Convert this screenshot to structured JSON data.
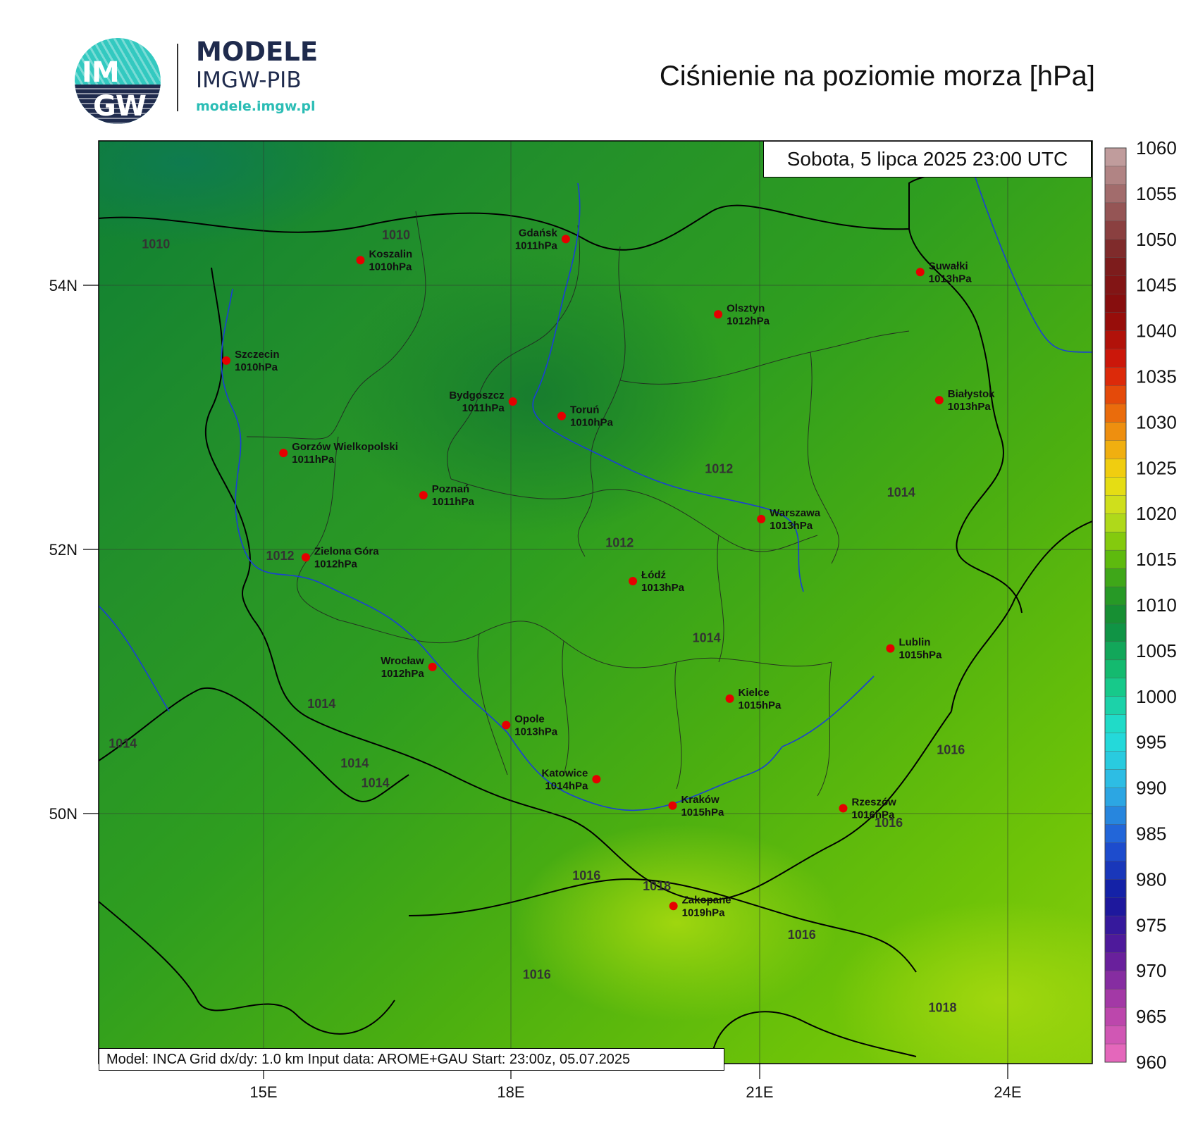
{
  "header": {
    "logo": {
      "title": "MODELE",
      "subtitle": "IMGW-PIB",
      "url": "modele.imgw.pl",
      "emblem_top": "IM",
      "emblem_bottom": "GW"
    },
    "title": "Ciśnienie na poziomie morza [hPa]"
  },
  "valid_time": "Sobota, 5 lipca 2025 23:00 UTC",
  "footer": "Model: INCA   Grid dx/dy: 1.0 km   Input data: AROME+GAU   Start: 23:00z, 05.07.2025",
  "axes": {
    "lat_labels": [
      "54N",
      "52N",
      "50N"
    ],
    "lon_labels": [
      "15E",
      "18E",
      "21E",
      "24E"
    ]
  },
  "colorbar": {
    "labels": [
      "1060",
      "1055",
      "1050",
      "1045",
      "1040",
      "1035",
      "1030",
      "1025",
      "1020",
      "1015",
      "1010",
      "1005",
      "1000",
      "995",
      "990",
      "985",
      "980",
      "975",
      "970",
      "965",
      "960"
    ]
  },
  "cities": [
    {
      "name": "Gdańsk",
      "value": "1011hPa",
      "lat": 54.35,
      "lon": 18.65,
      "anchor": "left"
    },
    {
      "name": "Koszalin",
      "value": "1010hPa",
      "lat": 54.19,
      "lon": 16.17,
      "anchor": "right"
    },
    {
      "name": "Suwałki",
      "value": "1013hPa",
      "lat": 54.1,
      "lon": 22.93,
      "anchor": "right"
    },
    {
      "name": "Olsztyn",
      "value": "1012hPa",
      "lat": 53.78,
      "lon": 20.49,
      "anchor": "right"
    },
    {
      "name": "Szczecin",
      "value": "1010hPa",
      "lat": 53.43,
      "lon": 14.55,
      "anchor": "right"
    },
    {
      "name": "Białystok",
      "value": "1013hPa",
      "lat": 53.13,
      "lon": 23.16,
      "anchor": "right"
    },
    {
      "name": "Bydgoszcz",
      "value": "1011hPa",
      "lat": 53.12,
      "lon": 18.01,
      "anchor": "left"
    },
    {
      "name": "Toruń",
      "value": "1010hPa",
      "lat": 53.01,
      "lon": 18.6,
      "anchor": "right"
    },
    {
      "name": "Gorzów Wielkopolski",
      "value": "1011hPa",
      "lat": 52.73,
      "lon": 15.24,
      "anchor": "right"
    },
    {
      "name": "Poznań",
      "value": "1011hPa",
      "lat": 52.41,
      "lon": 16.93,
      "anchor": "right"
    },
    {
      "name": "Warszawa",
      "value": "1013hPa",
      "lat": 52.23,
      "lon": 21.01,
      "anchor": "right"
    },
    {
      "name": "Zielona Góra",
      "value": "1012hPa",
      "lat": 51.94,
      "lon": 15.51,
      "anchor": "right"
    },
    {
      "name": "Łódź",
      "value": "1013hPa",
      "lat": 51.76,
      "lon": 19.46,
      "anchor": "right"
    },
    {
      "name": "Lublin",
      "value": "1015hPa",
      "lat": 51.25,
      "lon": 22.57,
      "anchor": "right"
    },
    {
      "name": "Wrocław",
      "value": "1012hPa",
      "lat": 51.11,
      "lon": 17.04,
      "anchor": "left"
    },
    {
      "name": "Kielce",
      "value": "1015hPa",
      "lat": 50.87,
      "lon": 20.63,
      "anchor": "right"
    },
    {
      "name": "Opole",
      "value": "1013hPa",
      "lat": 50.67,
      "lon": 17.93,
      "anchor": "right"
    },
    {
      "name": "Katowice",
      "value": "1014hPa",
      "lat": 50.26,
      "lon": 19.02,
      "anchor": "left"
    },
    {
      "name": "Rzeszów",
      "value": "1016hPa",
      "lat": 50.04,
      "lon": 22.0,
      "anchor": "right"
    },
    {
      "name": "Kraków",
      "value": "1015hPa",
      "lat": 50.06,
      "lon": 19.94,
      "anchor": "right"
    },
    {
      "name": "Zakopane",
      "value": "1019hPa",
      "lat": 49.3,
      "lon": 19.95,
      "anchor": "right"
    }
  ],
  "contour_labels": [
    {
      "text": "1010",
      "lat": 54.28,
      "lon": 13.7
    },
    {
      "text": "1010",
      "lat": 54.35,
      "lon": 16.6
    },
    {
      "text": "1012",
      "lat": 52.58,
      "lon": 20.5
    },
    {
      "text": "1014",
      "lat": 52.4,
      "lon": 22.7
    },
    {
      "text": "1012",
      "lat": 52.02,
      "lon": 19.3
    },
    {
      "text": "1012",
      "lat": 51.92,
      "lon": 15.2
    },
    {
      "text": "1014",
      "lat": 51.3,
      "lon": 20.35
    },
    {
      "text": "1014",
      "lat": 50.8,
      "lon": 15.7
    },
    {
      "text": "1014",
      "lat": 50.5,
      "lon": 13.3
    },
    {
      "text": "1014",
      "lat": 50.35,
      "lon": 16.1
    },
    {
      "text": "1014",
      "lat": 50.2,
      "lon": 16.35
    },
    {
      "text": "1016",
      "lat": 50.45,
      "lon": 23.3
    },
    {
      "text": "1016",
      "lat": 49.9,
      "lon": 22.55
    },
    {
      "text": "1016",
      "lat": 49.5,
      "lon": 18.9
    },
    {
      "text": "1018",
      "lat": 49.42,
      "lon": 19.75
    },
    {
      "text": "1016",
      "lat": 49.05,
      "lon": 21.5
    },
    {
      "text": "1016",
      "lat": 48.75,
      "lon": 18.3
    },
    {
      "text": "1018",
      "lat": 48.5,
      "lon": 23.2
    }
  ],
  "colors": {
    "city_dot": "#e50000",
    "grid": "#333333",
    "river": "#1a3fd6",
    "border": "#000000",
    "region": "#1a1a1a",
    "brand_dark": "#1f2b4d",
    "brand_teal": "#2bbdb5",
    "pressure_1008": "#0f7f34",
    "pressure_1011": "#23902a",
    "pressure_1013": "#2f9e1f",
    "pressure_1015": "#4caf10",
    "pressure_1017": "#6ec308",
    "pressure_1019": "#a3d80e"
  }
}
